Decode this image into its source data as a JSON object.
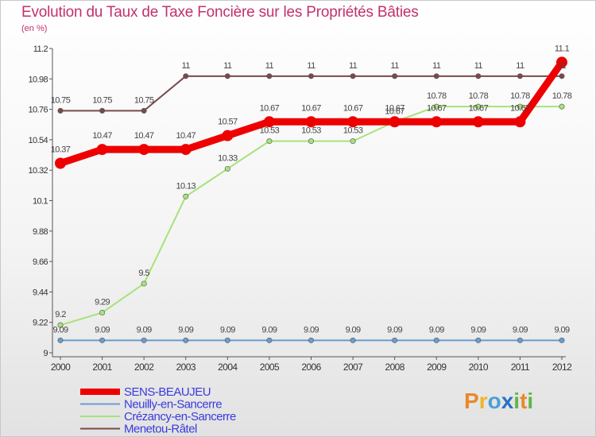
{
  "header": {
    "title": "Evolution du Taux de Taxe Foncière sur les Propriétés Bâties",
    "unit": "(en %)"
  },
  "logo": {
    "letters": [
      "P",
      "r",
      "o",
      "x",
      "i",
      "t",
      "i"
    ],
    "colors": [
      "#e8892a",
      "#f0b428",
      "#4aa0d8",
      "#2a70c8",
      "#5cb848",
      "#e8892a",
      "#5cb848"
    ]
  },
  "chart_data": {
    "type": "line",
    "ylabel": "(en %)",
    "x": [
      "2000",
      "2001",
      "2002",
      "2003",
      "2004",
      "2005",
      "2006",
      "2007",
      "2008",
      "2009",
      "2010",
      "2011",
      "2012"
    ],
    "ylim": [
      9,
      11.2
    ],
    "yticks": [
      "9",
      "9.22",
      "9.44",
      "9.66",
      "9.88",
      "10.1",
      "10.32",
      "10.54",
      "10.76",
      "10.98",
      "11.2"
    ],
    "grid": false,
    "legend_position": "bottom-left",
    "series": [
      {
        "name": "SENS-BEAUJEU",
        "color": "#ee0000",
        "values": [
          10.37,
          10.47,
          10.47,
          10.47,
          10.57,
          10.67,
          10.67,
          10.67,
          10.67,
          10.67,
          10.67,
          10.67,
          11.1
        ],
        "labels": [
          "10.37",
          "10.47",
          "10.47",
          "10.47",
          "10.57",
          "10.67",
          "10.67",
          "10.67",
          "10.67",
          "10.67",
          "10.67",
          "10.67",
          "11.1"
        ]
      },
      {
        "name": "Neuilly-en-Sancerre",
        "color": "#6a9ccc",
        "values": [
          9.09,
          9.09,
          9.09,
          9.09,
          9.09,
          9.09,
          9.09,
          9.09,
          9.09,
          9.09,
          9.09,
          9.09,
          9.09
        ],
        "labels": [
          "9.09",
          "9.09",
          "9.09",
          "9.09",
          "9.09",
          "9.09",
          "9.09",
          "9.09",
          "9.09",
          "9.09",
          "9.09",
          "9.09",
          "9.09"
        ]
      },
      {
        "name": "Crézancy-en-Sancerre",
        "color": "#a6e37a",
        "values": [
          9.2,
          9.29,
          9.5,
          10.13,
          10.33,
          10.53,
          10.53,
          10.53,
          10.67,
          10.78,
          10.78,
          10.78,
          10.78
        ],
        "labels": [
          "9.2",
          "9.29",
          "9.5",
          "10.13",
          "10.33",
          "10.53",
          "10.53",
          "10.53",
          "10.67",
          "10.78",
          "10.78",
          "10.78",
          "10.78"
        ]
      },
      {
        "name": "Menetou-Râtel",
        "color": "#7a4a4a",
        "values": [
          10.75,
          10.75,
          10.75,
          11,
          11,
          11,
          11,
          11,
          11,
          11,
          11,
          11,
          11
        ],
        "labels": [
          "10.75",
          "10.75",
          "10.75",
          "11",
          "11",
          "11",
          "11",
          "11",
          "11",
          "11",
          "11",
          "11",
          "11"
        ]
      }
    ]
  }
}
